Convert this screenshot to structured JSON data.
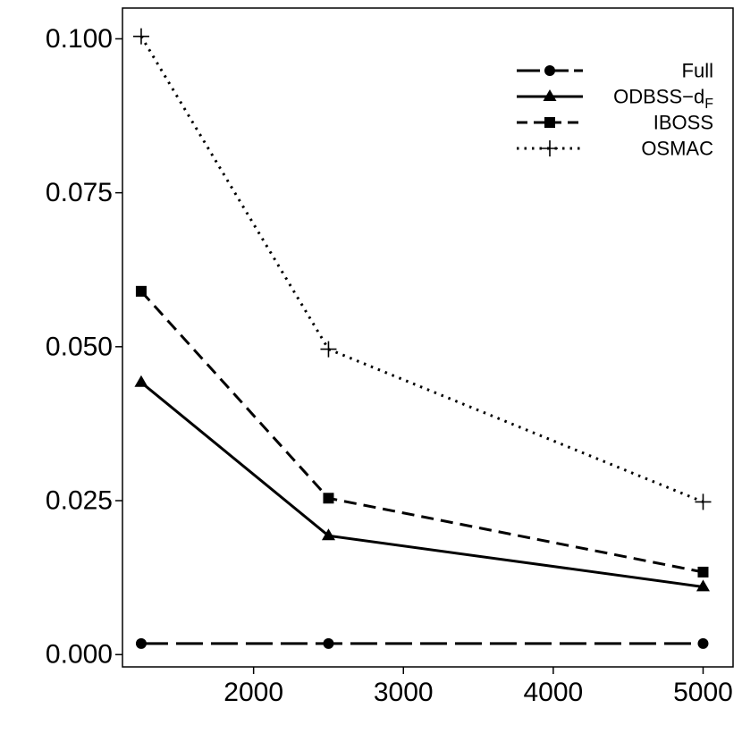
{
  "chart_data": {
    "type": "line",
    "title": "",
    "xlabel": "",
    "ylabel": "",
    "x": [
      1250,
      2500,
      5000
    ],
    "xlim": [
      1125,
      5200
    ],
    "ylim": [
      -0.002,
      0.105
    ],
    "xticks": [
      2000,
      3000,
      4000,
      5000
    ],
    "xtick_labels": [
      "2000",
      "3000",
      "4000",
      "5000"
    ],
    "yticks": [
      0.0,
      0.025,
      0.05,
      0.075,
      0.1
    ],
    "ytick_labels": [
      "0.000",
      "0.025",
      "0.050",
      "0.075",
      "0.100"
    ],
    "grid": false,
    "legend_position": "top-right",
    "series": [
      {
        "name": "Full",
        "values": [
          0.0018,
          0.0018,
          0.0018
        ],
        "linestyle": "longdash",
        "marker": "circle"
      },
      {
        "name": "ODBSS−d",
        "subscript": "F",
        "values": [
          0.0442,
          0.0193,
          0.011
        ],
        "linestyle": "solid",
        "marker": "triangle"
      },
      {
        "name": "IBOSS",
        "values": [
          0.059,
          0.0254,
          0.0134
        ],
        "linestyle": "dashed",
        "marker": "square"
      },
      {
        "name": "OSMAC",
        "values": [
          0.1004,
          0.0496,
          0.0248
        ],
        "linestyle": "dotted",
        "marker": "plus"
      }
    ],
    "colors": {
      "line": "#000000",
      "background": "#ffffff"
    }
  }
}
